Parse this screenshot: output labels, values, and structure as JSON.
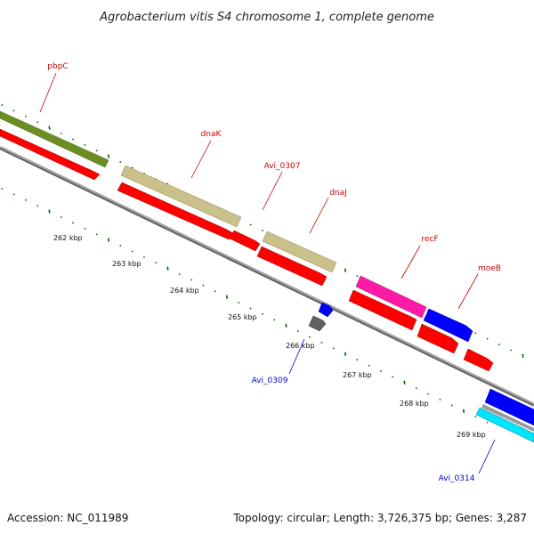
{
  "title": "Agrobacterium vitis S4 chromosome 1, complete genome",
  "footer": {
    "accession": "Accession: NC_011989",
    "summary": "Topology: circular; Length: 3,726,375 bp; Genes: 3,287"
  },
  "colors": {
    "red_label": "#cc0000",
    "blue_label": "#0000cc",
    "tick": "#006600",
    "backbone": "#888888",
    "cds": "#ff0000",
    "olive": "#6b8e23",
    "khaki": "#c9c08a",
    "magenta": "#ff1aa8",
    "blue": "#0000ff",
    "gray": "#606060",
    "cyan": "#00e5ff"
  },
  "scale_labels": [
    "262 kbp",
    "263 kbp",
    "264 kbp",
    "265 kbp",
    "266 kbp",
    "267 kbp",
    "268 kbp",
    "269 kbp"
  ],
  "gene_labels": [
    {
      "id": "pbpC",
      "text": "pbpC",
      "strand": "top"
    },
    {
      "id": "dnaK",
      "text": "dnaK",
      "strand": "top"
    },
    {
      "id": "avi-0307",
      "text": "Avi_0307",
      "strand": "top"
    },
    {
      "id": "dnaJ",
      "text": "dnaJ",
      "strand": "top"
    },
    {
      "id": "recF",
      "text": "recF",
      "strand": "top"
    },
    {
      "id": "moeB",
      "text": "moeB",
      "strand": "top"
    },
    {
      "id": "avi-0309",
      "text": "Avi_0309",
      "strand": "bottom"
    },
    {
      "id": "avi-0314",
      "text": "Avi_0314",
      "strand": "bottom"
    }
  ]
}
